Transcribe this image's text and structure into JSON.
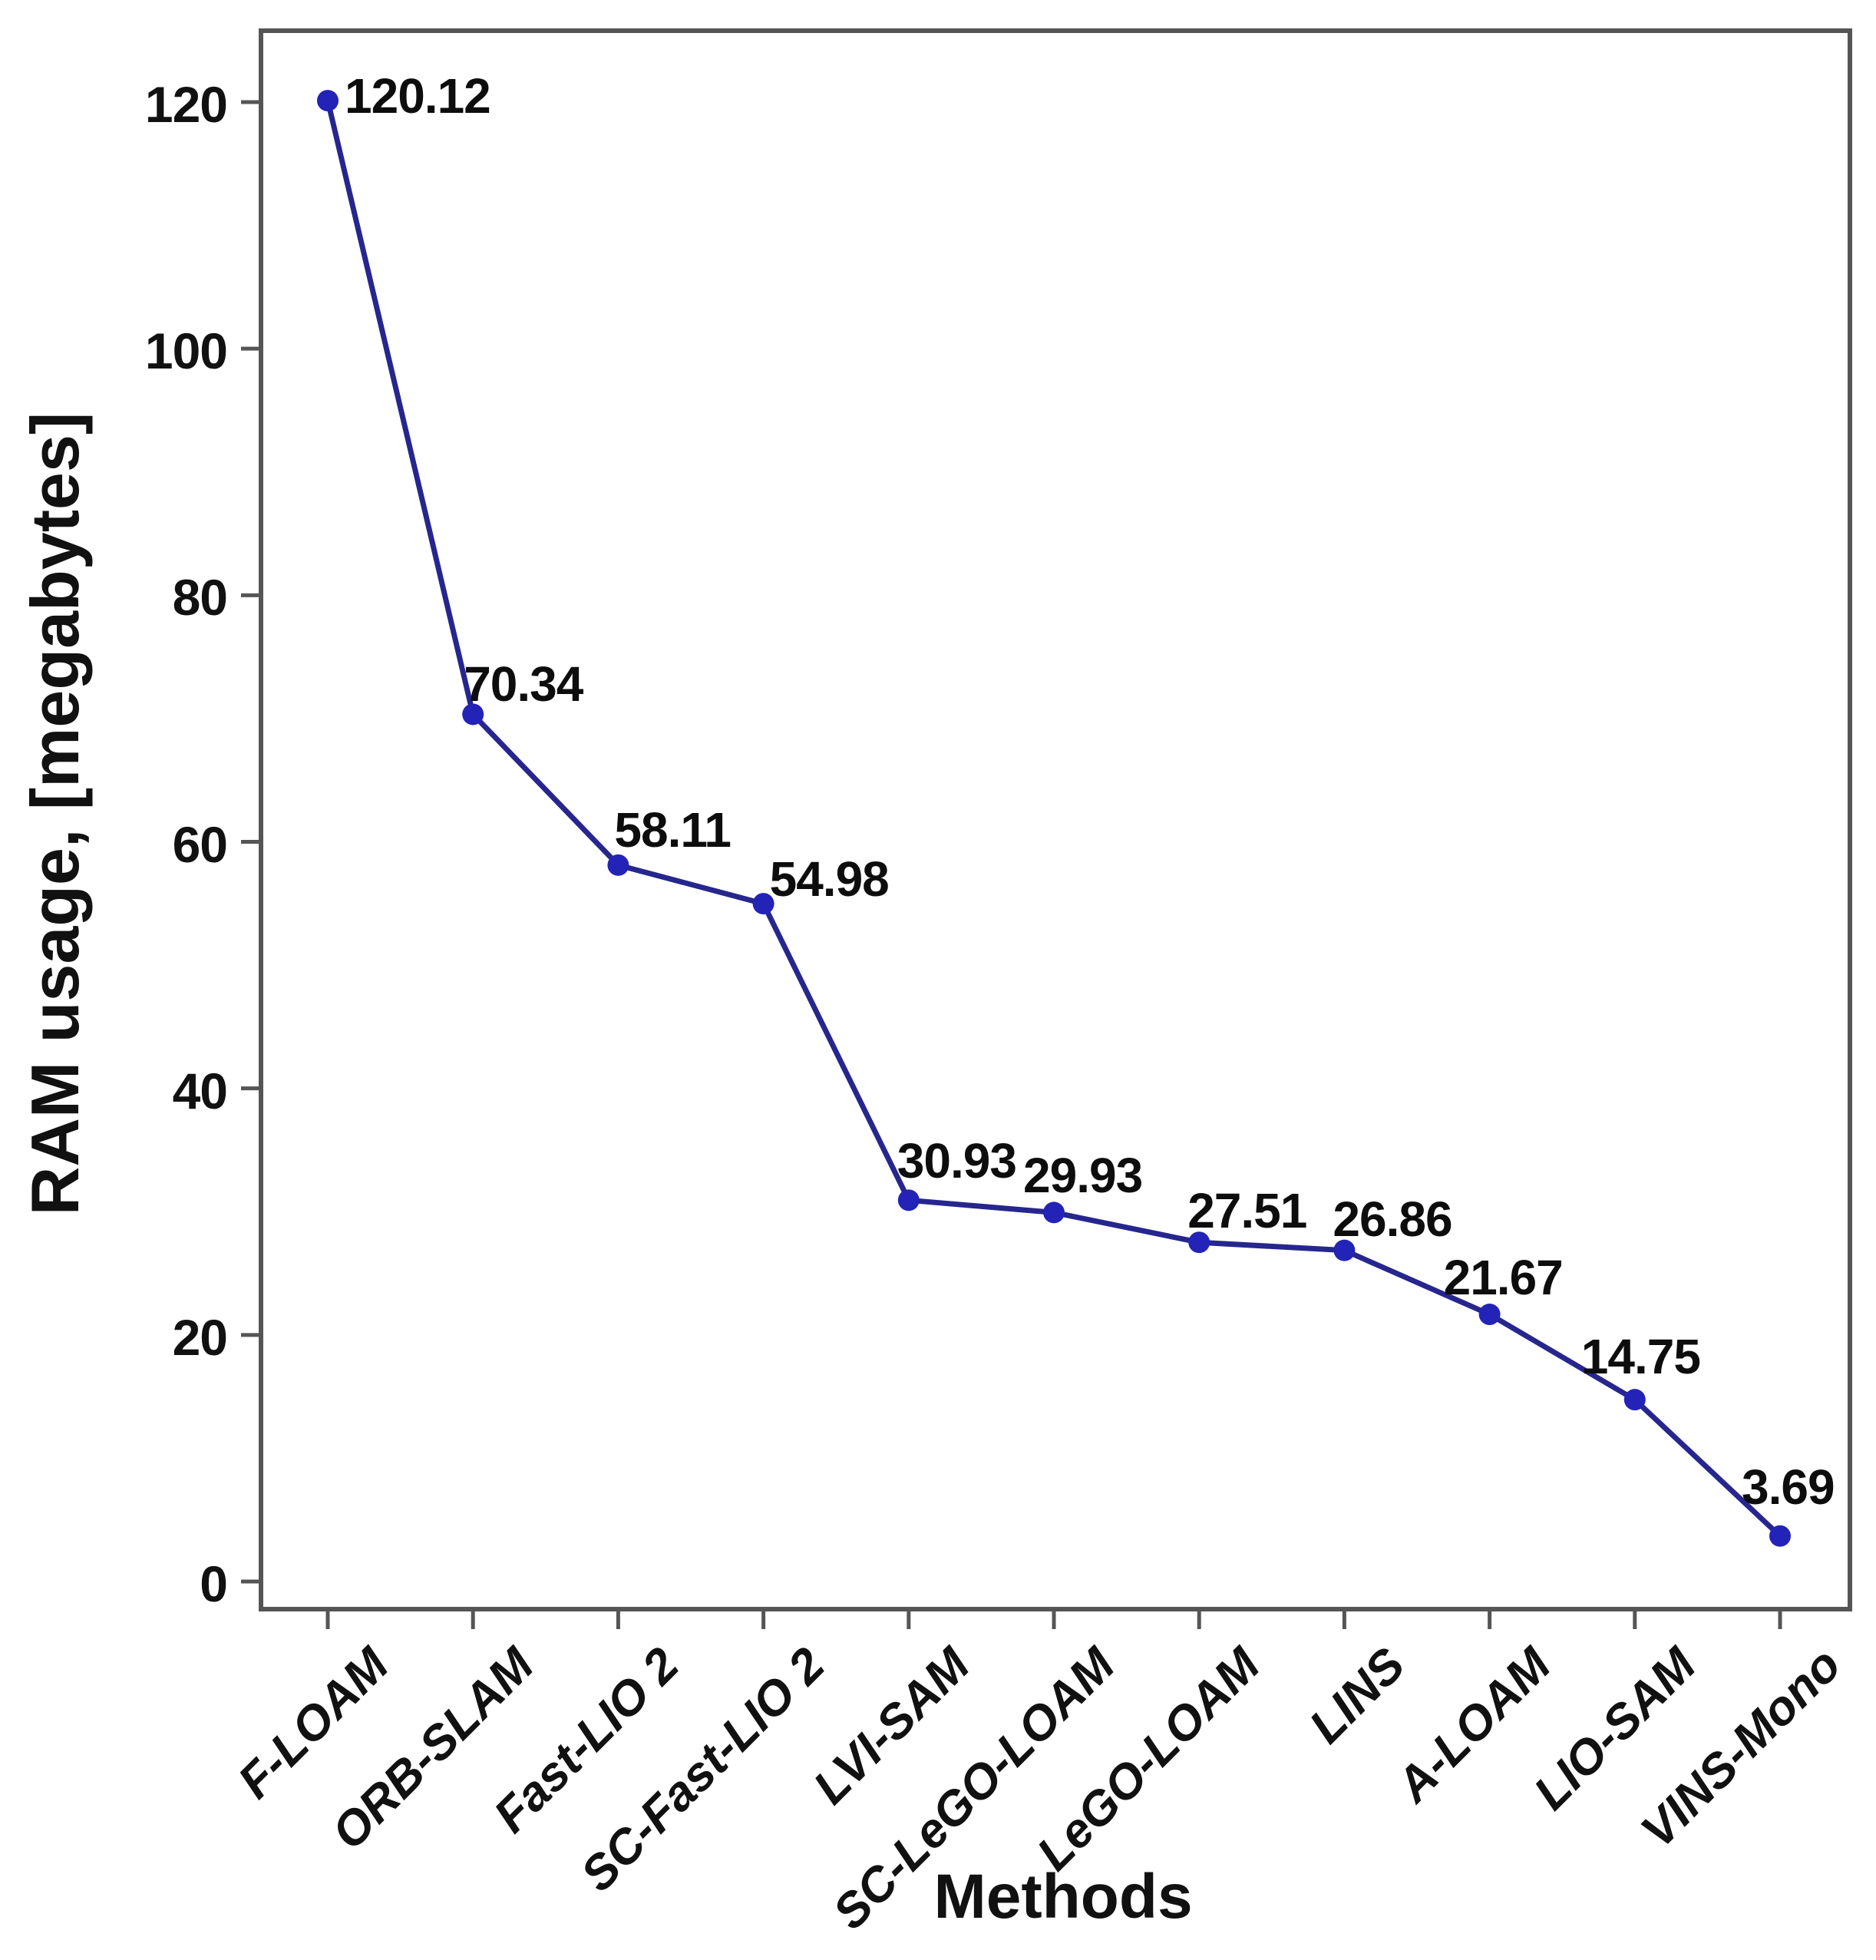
{
  "chart_data": {
    "type": "line",
    "title": "",
    "xlabel": "Methods",
    "ylabel": "RAM usage, [megabytes]",
    "categories": [
      "F-LOAM",
      "ORB-SLAM",
      "Fast-LIO 2",
      "SC-Fast-LIO 2",
      "LVI-SAM",
      "SC-LeGO-LOAM",
      "LeGO-LOAM",
      "LINS",
      "A-LOAM",
      "LIO-SAM",
      "VINS-Mono"
    ],
    "series": [
      {
        "name": "RAM usage",
        "values": [
          120.12,
          70.34,
          58.11,
          54.98,
          30.93,
          29.93,
          27.51,
          26.86,
          21.67,
          14.75,
          3.69
        ]
      }
    ],
    "point_labels": [
      "120.12",
      "70.34",
      "58.11",
      "54.98",
      "30.93",
      "29.93",
      "27.51",
      "26.86",
      "21.67",
      "14.75",
      "3.69"
    ],
    "yticks": [
      0,
      20,
      40,
      60,
      80,
      100,
      120
    ],
    "ylim": [
      0,
      120
    ],
    "grid": false,
    "legend_position": "none",
    "colors": {
      "line": "#26268e",
      "marker": "#2323b8",
      "axis": "#555555",
      "text": "#111111"
    }
  }
}
